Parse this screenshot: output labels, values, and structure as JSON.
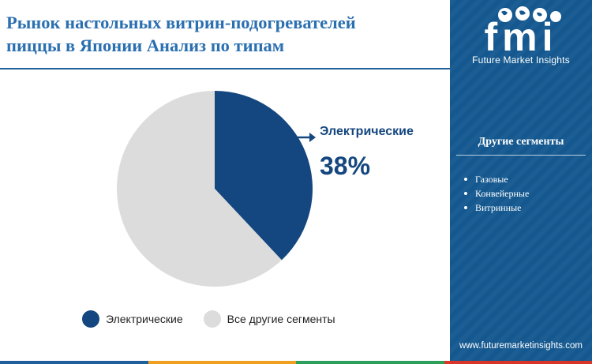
{
  "title_lines": [
    "Рынок настольных витрин-подогревателей",
    "пиццы в Японии Анализ по типам"
  ],
  "brand": {
    "logo_text": "fmi",
    "tagline": "Future Market Insights",
    "website": "www.futuremarketinsights.com"
  },
  "sidebar": {
    "heading": "Другие сегменты",
    "items": [
      "Газовые",
      "Конвейерные",
      "Витринные"
    ]
  },
  "chart_data": {
    "type": "pie",
    "unit": "%",
    "slices": [
      {
        "label": "Электрические",
        "value": 38,
        "color": "#14467f"
      },
      {
        "label": "Все другие сегменты",
        "value": 62,
        "color": "#dcdcdc"
      }
    ],
    "callout": {
      "label": "Электрические",
      "value_text": "38%"
    }
  },
  "colors": {
    "title": "#2a6fb0",
    "sidebar": "#14588f",
    "primary_slice": "#14467f",
    "other_slice": "#dcdcdc",
    "bottom_bar": [
      "#1f5f9e",
      "#f0a020",
      "#2e9f5a",
      "#d9352a"
    ]
  }
}
